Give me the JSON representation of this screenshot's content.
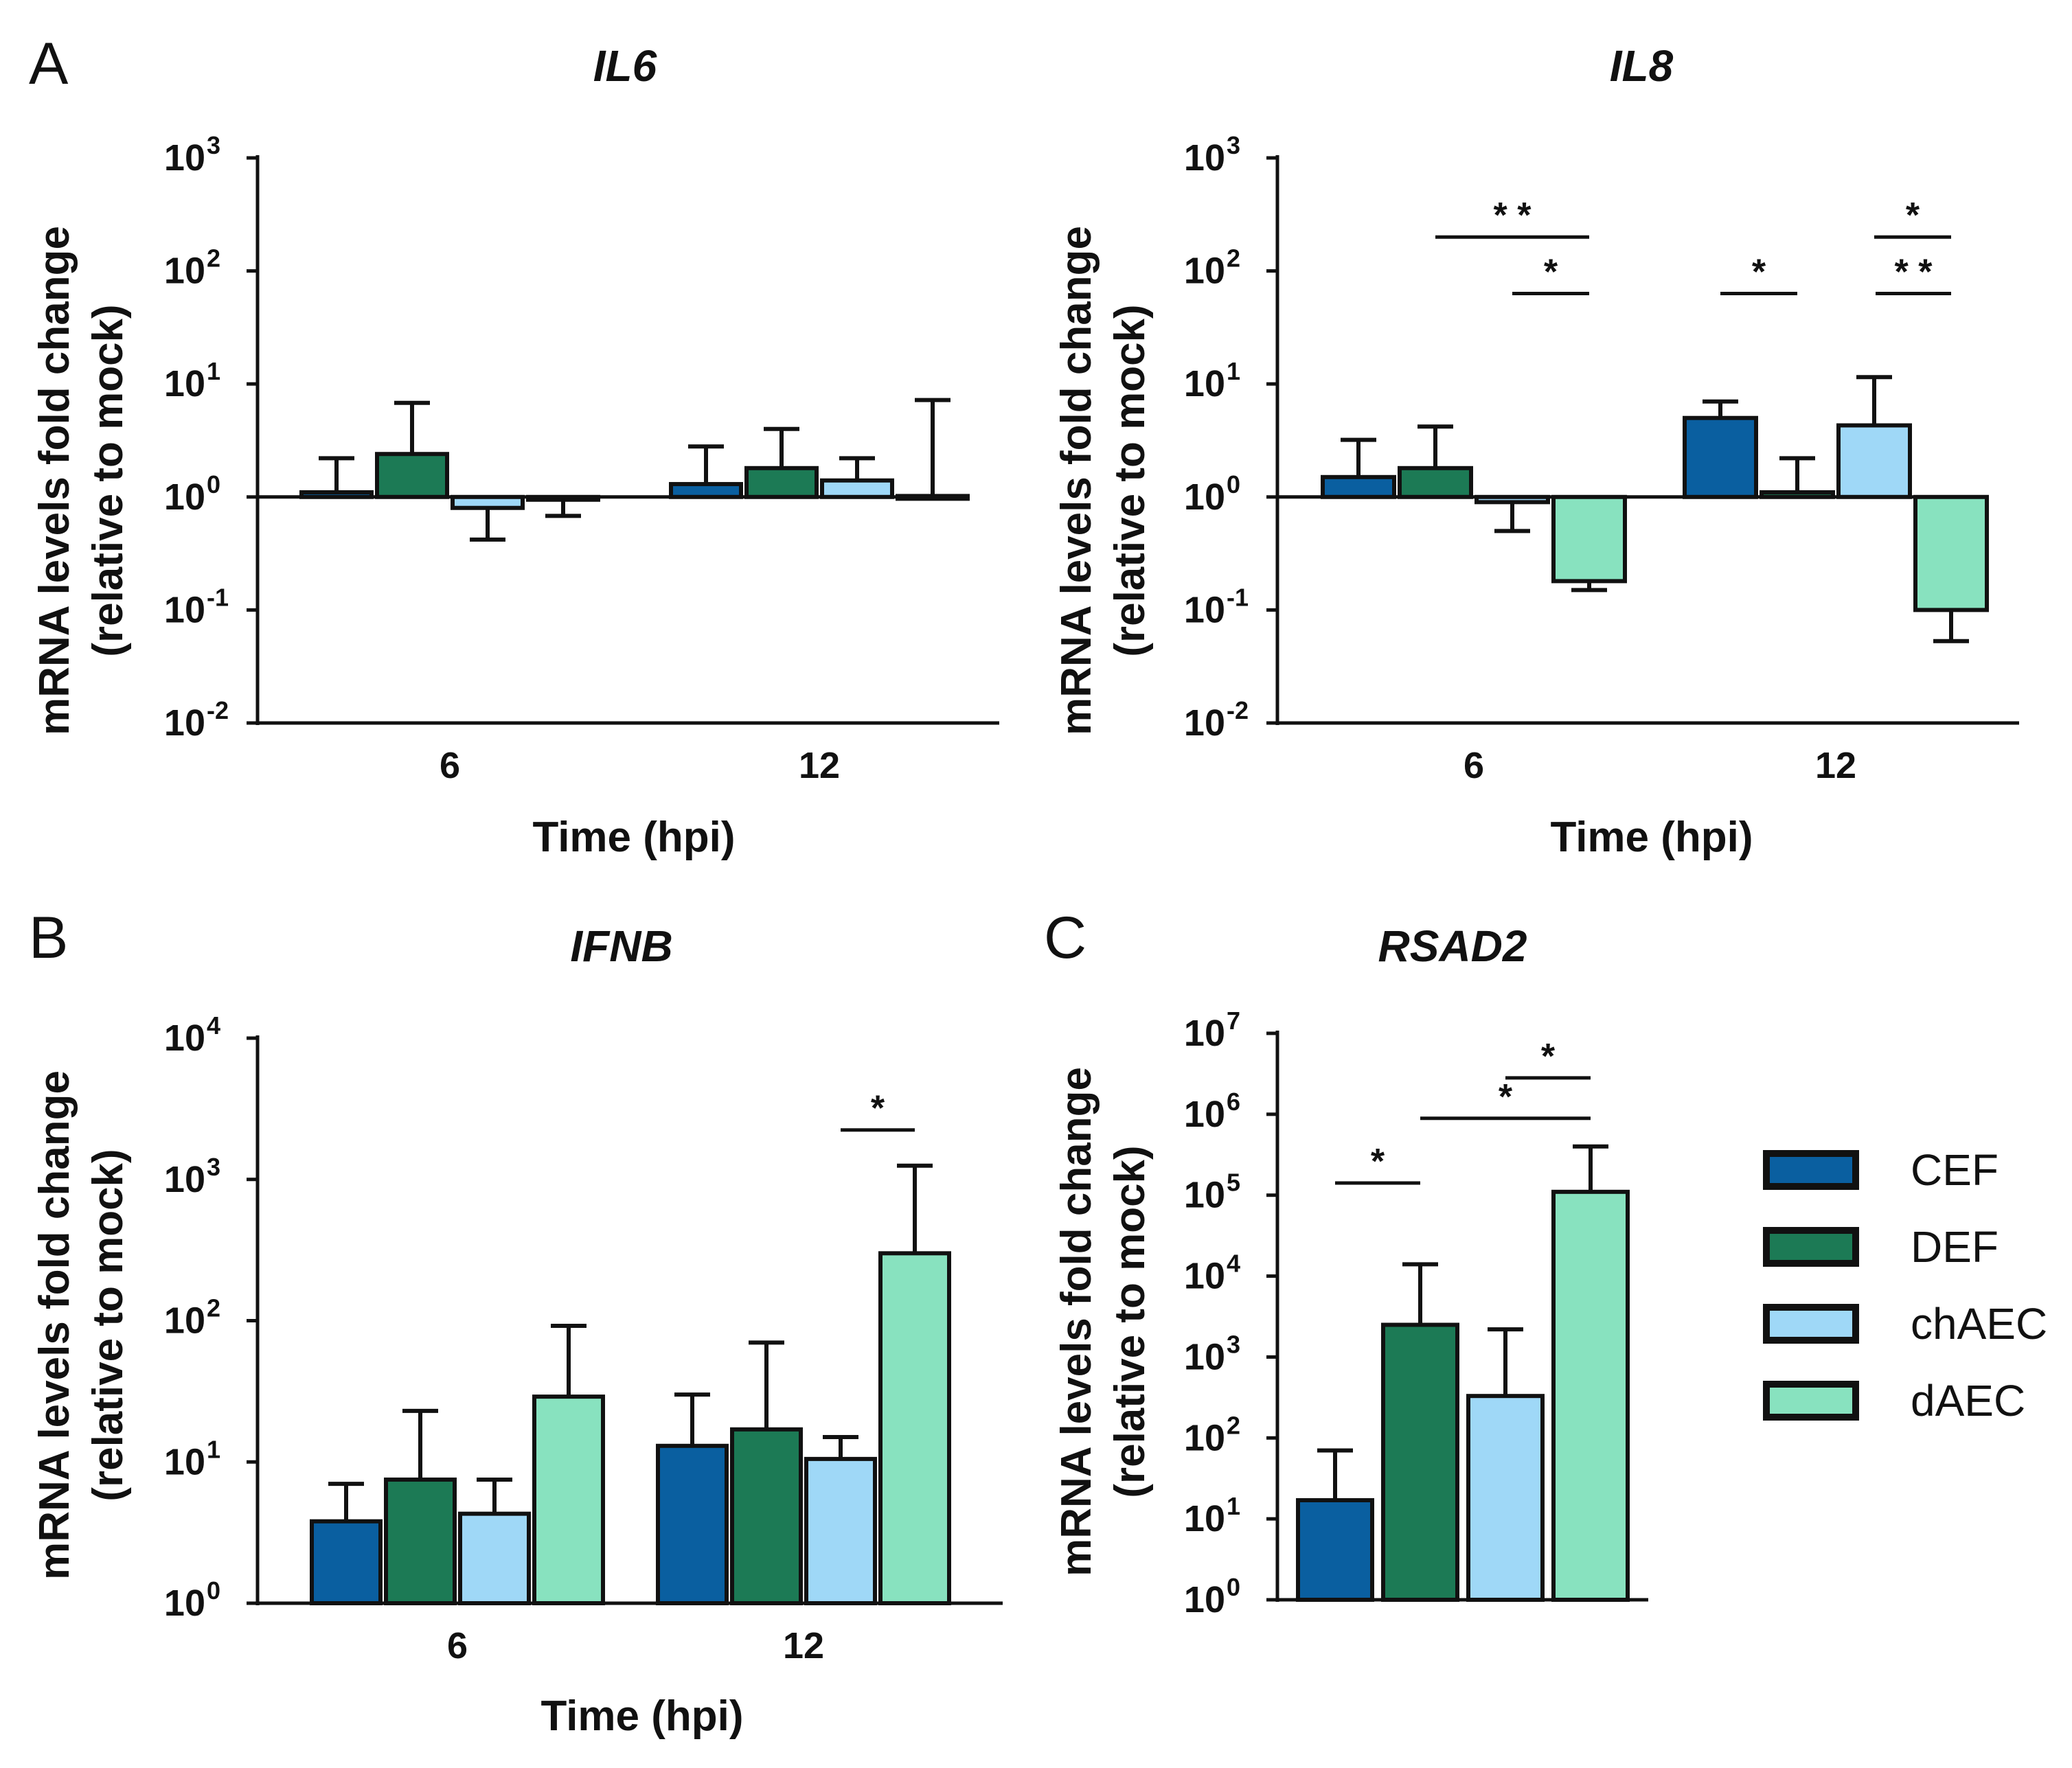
{
  "panel_labels": {
    "A": "A",
    "B": "B",
    "C": "C"
  },
  "common": {
    "ylabel_line1": "mRNA levels fold change",
    "ylabel_line2": "(relative to mock)",
    "xlabel": "Time (hpi)"
  },
  "legend": [
    {
      "name": "CEF",
      "color": "#0a5fa0"
    },
    {
      "name": "DEF",
      "color": "#1c7a55"
    },
    {
      "name": "chAEC",
      "color": "#9fd8f7"
    },
    {
      "name": "dAEC",
      "color": "#88e2bf"
    }
  ],
  "chart_data": [
    {
      "id": "il6",
      "type": "bar",
      "title": "IL6",
      "xlabel": "Time (hpi)",
      "ylabel": "mRNA levels fold change (relative to mock)",
      "yscale": "log",
      "ylim_exp": [
        -2,
        3
      ],
      "yticks": [
        "10",
        "10",
        "10",
        "10",
        "10",
        "10"
      ],
      "ytick_exps": [
        "-2",
        "-1",
        "0",
        "1",
        "2",
        "3"
      ],
      "baseline": 1,
      "categories": [
        "6",
        "12"
      ],
      "series": [
        {
          "name": "CEF",
          "values": [
            1.1,
            1.3
          ],
          "err_upper": [
            2.2,
            2.8
          ]
        },
        {
          "name": "DEF",
          "values": [
            2.4,
            1.8
          ],
          "err_upper": [
            6.8,
            4.0
          ]
        },
        {
          "name": "chAEC",
          "values": [
            0.8,
            1.4
          ],
          "err_upper": [
            0.42,
            2.2
          ]
        },
        {
          "name": "dAEC",
          "values": [
            0.95,
            1.02
          ],
          "err_upper": [
            0.68,
            7.2
          ]
        }
      ],
      "significance": []
    },
    {
      "id": "il8",
      "type": "bar",
      "title": "IL8",
      "xlabel": "Time (hpi)",
      "ylabel": "mRNA levels fold change (relative to mock)",
      "yscale": "log",
      "ylim_exp": [
        -2,
        3
      ],
      "yticks": [
        "10",
        "10",
        "10",
        "10",
        "10",
        "10"
      ],
      "ytick_exps": [
        "-2",
        "-1",
        "0",
        "1",
        "2",
        "3"
      ],
      "baseline": 1,
      "categories": [
        "6",
        "12"
      ],
      "series": [
        {
          "name": "CEF",
          "values": [
            1.5,
            5.0
          ],
          "err_upper": [
            3.2,
            7.0
          ]
        },
        {
          "name": "DEF",
          "values": [
            1.8,
            1.1
          ],
          "err_upper": [
            4.2,
            2.2
          ]
        },
        {
          "name": "chAEC",
          "values": [
            0.9,
            4.3
          ],
          "err_upper": [
            0.5,
            11.5
          ]
        },
        {
          "name": "dAEC",
          "values": [
            0.18,
            0.1
          ],
          "err_upper": [
            0.15,
            0.053
          ]
        }
      ],
      "significance": [
        {
          "from_group": 0,
          "from_series": 1,
          "to_group": 0,
          "to_series": 3,
          "label": "* *",
          "level_exp": 2.3
        },
        {
          "from_group": 0,
          "from_series": 2,
          "to_group": 0,
          "to_series": 3,
          "label": "*",
          "level_exp": 1.8
        },
        {
          "from_group": 1,
          "from_series": 0,
          "to_group": 1,
          "to_series": 1,
          "label": "*",
          "level_exp": 1.8
        },
        {
          "from_group": 1,
          "from_series": 2,
          "to_group": 1,
          "to_series": 3,
          "label": "*",
          "level_exp": 2.3
        },
        {
          "from_group": 1,
          "from_series": 3,
          "to_group": 1,
          "to_series": 3,
          "label": "* *",
          "level_exp": 1.8,
          "from_x_offset": "pair-right"
        }
      ]
    },
    {
      "id": "ifnb",
      "type": "bar",
      "title": "IFNB",
      "xlabel": "Time (hpi)",
      "ylabel": "mRNA levels fold change (relative to mock)",
      "yscale": "log",
      "ylim_exp": [
        0,
        4
      ],
      "yticks": [
        "10",
        "10",
        "10",
        "10",
        "10"
      ],
      "ytick_exps": [
        "0",
        "1",
        "2",
        "3",
        "4"
      ],
      "baseline": 1,
      "categories": [
        "6",
        "12"
      ],
      "series": [
        {
          "name": "CEF",
          "values": [
            3.8,
            13.0
          ],
          "err_upper": [
            7.0,
            30.0
          ]
        },
        {
          "name": "DEF",
          "values": [
            7.5,
            17.0
          ],
          "err_upper": [
            23.0,
            70.0
          ]
        },
        {
          "name": "chAEC",
          "values": [
            4.3,
            10.5
          ],
          "err_upper": [
            7.5,
            15.0
          ]
        },
        {
          "name": "dAEC",
          "values": [
            29.0,
            300.0
          ],
          "err_upper": [
            92.0,
            1250.0
          ]
        }
      ],
      "significance": [
        {
          "from_group": 1,
          "from_series": 2,
          "to_group": 1,
          "to_series": 3,
          "label": "*",
          "level_exp": 3.35
        }
      ]
    },
    {
      "id": "rsad2",
      "type": "bar",
      "title": "RSAD2",
      "xlabel": "",
      "ylabel": "mRNA levels fold change (relative to mock)",
      "yscale": "log",
      "ylim_exp": [
        0,
        7
      ],
      "yticks": [
        "10",
        "10",
        "10",
        "10",
        "10",
        "10",
        "10",
        "10"
      ],
      "ytick_exps": [
        "0",
        "1",
        "2",
        "3",
        "4",
        "5",
        "6",
        "7"
      ],
      "baseline": 1,
      "categories": [
        ""
      ],
      "series": [
        {
          "name": "CEF",
          "values": [
            17.0
          ],
          "err_upper": [
            70.0
          ]
        },
        {
          "name": "DEF",
          "values": [
            2500.0
          ],
          "err_upper": [
            14000.0
          ]
        },
        {
          "name": "chAEC",
          "values": [
            330.0
          ],
          "err_upper": [
            2200.0
          ]
        },
        {
          "name": "dAEC",
          "values": [
            110000.0
          ],
          "err_upper": [
            400000.0
          ]
        }
      ],
      "significance": [
        {
          "from_group": 0,
          "from_series": 0,
          "to_group": 0,
          "to_series": 1,
          "label": "*",
          "level_exp": 5.15
        },
        {
          "from_group": 0,
          "from_series": 1,
          "to_group": 0,
          "to_series": 3,
          "label": "*",
          "level_exp": 5.95
        },
        {
          "from_group": 0,
          "from_series": 2,
          "to_group": 0,
          "to_series": 3,
          "label": "*",
          "level_exp": 6.45
        }
      ]
    }
  ]
}
